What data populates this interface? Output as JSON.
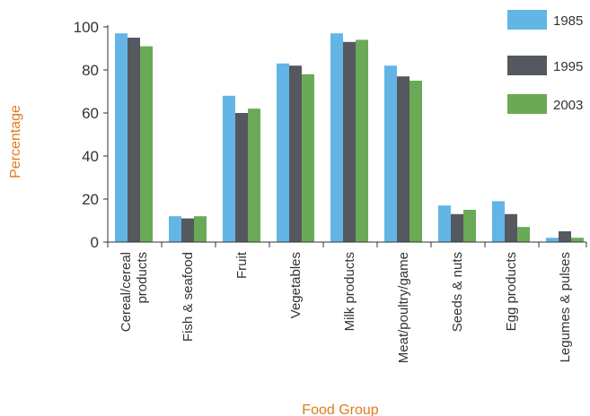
{
  "colors": {
    "axis_title": "#e07b1e",
    "axis_line": "#333333"
  },
  "chart_data": {
    "type": "bar",
    "title": "",
    "xlabel": "Food Group",
    "ylabel": "Percentage",
    "ylim": [
      0,
      100
    ],
    "yticks": [
      0,
      20,
      40,
      60,
      80,
      100
    ],
    "grid": false,
    "legend_position": "top-right",
    "categories": [
      "Cereal/cereal products",
      "Fish & seafood",
      "Fruit",
      "Vegetables",
      "Milk products",
      "Meat/poultry/game",
      "Seeds & nuts",
      "Egg products",
      "Legumes & pulses"
    ],
    "category_lines": [
      [
        "Cereal/cereal",
        "products"
      ],
      [
        "Fish & seafood"
      ],
      [
        "Fruit"
      ],
      [
        "Vegetables"
      ],
      [
        "Milk products"
      ],
      [
        "Meat/poultry/game"
      ],
      [
        "Seeds & nuts"
      ],
      [
        "Egg products"
      ],
      [
        "Legumes & pulses"
      ]
    ],
    "series": [
      {
        "name": "1985",
        "color": "#62b5e5",
        "values": [
          97,
          12,
          68,
          83,
          97,
          82,
          17,
          19,
          2
        ]
      },
      {
        "name": "1995",
        "color": "#55585e",
        "values": [
          95,
          11,
          60,
          82,
          93,
          77,
          13,
          13,
          5
        ]
      },
      {
        "name": "2003",
        "color": "#6aaa57",
        "values": [
          91,
          12,
          62,
          78,
          94,
          75,
          15,
          7,
          2
        ]
      }
    ]
  }
}
